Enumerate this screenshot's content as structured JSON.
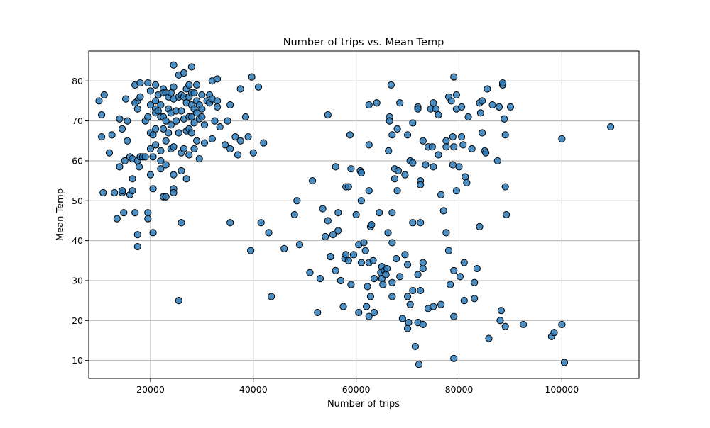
{
  "chart_data": {
    "type": "scatter",
    "title": "Number of trips vs. Mean Temp",
    "xlabel": "Number of trips",
    "ylabel": "Mean Temp",
    "xlim": [
      8000,
      115000
    ],
    "ylim": [
      5.5,
      87.5
    ],
    "xticks": [
      20000,
      40000,
      60000,
      80000,
      100000
    ],
    "yticks": [
      10,
      20,
      30,
      40,
      50,
      60,
      70,
      80
    ],
    "grid": true,
    "marker_color": "#2b7bba",
    "edge_color": "#000000",
    "points": [
      [
        10000,
        75
      ],
      [
        11000,
        76.5
      ],
      [
        10500,
        71.5
      ],
      [
        10500,
        66
      ],
      [
        12500,
        66.5
      ],
      [
        10800,
        52
      ],
      [
        12000,
        62
      ],
      [
        13000,
        52
      ],
      [
        13500,
        45.5
      ],
      [
        14000,
        58.5
      ],
      [
        14000,
        70.5
      ],
      [
        14500,
        68
      ],
      [
        14500,
        52
      ],
      [
        14800,
        47
      ],
      [
        14500,
        52.5
      ],
      [
        15000,
        60
      ],
      [
        15500,
        70
      ],
      [
        15500,
        65
      ],
      [
        15200,
        75.5
      ],
      [
        16000,
        51.5
      ],
      [
        16500,
        55.5
      ],
      [
        16000,
        61
      ],
      [
        16500,
        60.5
      ],
      [
        16500,
        52.5
      ],
      [
        17000,
        79
      ],
      [
        17500,
        75
      ],
      [
        17000,
        74.5
      ],
      [
        17500,
        73
      ],
      [
        17500,
        60
      ],
      [
        17800,
        58.5
      ],
      [
        17000,
        47
      ],
      [
        17500,
        41.5
      ],
      [
        17500,
        38.5
      ],
      [
        18000,
        79.5
      ],
      [
        18000,
        76
      ],
      [
        18000,
        61
      ],
      [
        18500,
        61
      ],
      [
        19000,
        70
      ],
      [
        19000,
        61
      ],
      [
        19500,
        47
      ],
      [
        19500,
        45.5
      ],
      [
        19500,
        79.5
      ],
      [
        19500,
        71
      ],
      [
        20000,
        77.5
      ],
      [
        20000,
        74
      ],
      [
        20000,
        67
      ],
      [
        20000,
        63
      ],
      [
        20000,
        56.5
      ],
      [
        20500,
        61
      ],
      [
        20500,
        53
      ],
      [
        20500,
        42
      ],
      [
        20500,
        66.5
      ],
      [
        21000,
        73
      ],
      [
        21000,
        79
      ],
      [
        21000,
        72
      ],
      [
        21000,
        75
      ],
      [
        21000,
        68
      ],
      [
        21000,
        64
      ],
      [
        21500,
        76.5
      ],
      [
        21500,
        72.5
      ],
      [
        22000,
        71
      ],
      [
        22000,
        74
      ],
      [
        22000,
        62.5
      ],
      [
        22000,
        60
      ],
      [
        22000,
        58
      ],
      [
        22500,
        78
      ],
      [
        22500,
        77
      ],
      [
        22500,
        71
      ],
      [
        22500,
        68
      ],
      [
        22500,
        51
      ],
      [
        23000,
        77
      ],
      [
        23000,
        70
      ],
      [
        23000,
        65
      ],
      [
        23000,
        59
      ],
      [
        23000,
        51
      ],
      [
        23500,
        76
      ],
      [
        23500,
        73
      ],
      [
        23500,
        67
      ],
      [
        24000,
        77
      ],
      [
        24000,
        72
      ],
      [
        24000,
        69
      ],
      [
        24000,
        63
      ],
      [
        24500,
        84
      ],
      [
        24500,
        78.5
      ],
      [
        24500,
        75.5
      ],
      [
        24500,
        63.5
      ],
      [
        24500,
        53
      ],
      [
        24500,
        52
      ],
      [
        24500,
        56.5
      ],
      [
        25000,
        72.5
      ],
      [
        25000,
        70
      ],
      [
        25500,
        81.5
      ],
      [
        25500,
        76
      ],
      [
        25500,
        67
      ],
      [
        25500,
        25
      ],
      [
        26000,
        76.5
      ],
      [
        26000,
        72.5
      ],
      [
        26000,
        62
      ],
      [
        26000,
        57.5
      ],
      [
        26000,
        44.5
      ],
      [
        26500,
        82
      ],
      [
        26500,
        76
      ],
      [
        26500,
        70.5
      ],
      [
        26500,
        63
      ],
      [
        27000,
        78
      ],
      [
        27000,
        74.5
      ],
      [
        27000,
        67.5
      ],
      [
        27000,
        55.5
      ],
      [
        27500,
        79
      ],
      [
        27500,
        76
      ],
      [
        27500,
        71
      ],
      [
        27500,
        68
      ],
      [
        27500,
        61.5
      ],
      [
        28000,
        83.5
      ],
      [
        28000,
        77
      ],
      [
        28000,
        74
      ],
      [
        28000,
        71
      ],
      [
        28000,
        67
      ],
      [
        28500,
        77
      ],
      [
        28500,
        73
      ],
      [
        28500,
        69.5
      ],
      [
        28500,
        63
      ],
      [
        29000,
        79
      ],
      [
        29000,
        75
      ],
      [
        29000,
        72
      ],
      [
        29000,
        65
      ],
      [
        29500,
        74
      ],
      [
        29500,
        70.5
      ],
      [
        29500,
        60.5
      ],
      [
        30000,
        76.5
      ],
      [
        30000,
        73
      ],
      [
        30000,
        71
      ],
      [
        30500,
        69
      ],
      [
        30500,
        64.5
      ],
      [
        31000,
        75
      ],
      [
        31500,
        76.5
      ],
      [
        31500,
        74.5
      ],
      [
        32000,
        80
      ],
      [
        32000,
        75.5
      ],
      [
        32000,
        65.5
      ],
      [
        32500,
        70
      ],
      [
        33000,
        80.5
      ],
      [
        33000,
        75
      ],
      [
        33000,
        73.5
      ],
      [
        33500,
        68.5
      ],
      [
        34500,
        64
      ],
      [
        35000,
        70
      ],
      [
        35500,
        74
      ],
      [
        35500,
        63
      ],
      [
        35500,
        44.5
      ],
      [
        36500,
        66
      ],
      [
        37000,
        61.5
      ],
      [
        37500,
        78
      ],
      [
        37500,
        65
      ],
      [
        38500,
        71
      ],
      [
        39000,
        66
      ],
      [
        39500,
        37.5
      ],
      [
        39700,
        81
      ],
      [
        40000,
        62
      ],
      [
        41000,
        78.5
      ],
      [
        41500,
        44.5
      ],
      [
        42000,
        64.5
      ],
      [
        43000,
        42
      ],
      [
        43500,
        26
      ],
      [
        46000,
        38
      ],
      [
        48000,
        46.5
      ],
      [
        48500,
        50
      ],
      [
        49000,
        39
      ],
      [
        51000,
        32
      ],
      [
        51500,
        55
      ],
      [
        52500,
        22
      ],
      [
        53000,
        30.5
      ],
      [
        53500,
        48
      ],
      [
        54000,
        41
      ],
      [
        54500,
        45
      ],
      [
        54500,
        71.5
      ],
      [
        55000,
        36
      ],
      [
        55500,
        41.5
      ],
      [
        56000,
        58.5
      ],
      [
        56000,
        32.5
      ],
      [
        56500,
        47
      ],
      [
        56500,
        42.5
      ],
      [
        57000,
        30
      ],
      [
        57500,
        23.5
      ],
      [
        57800,
        35.5
      ],
      [
        58000,
        53.5
      ],
      [
        58000,
        36.5
      ],
      [
        58500,
        53.5
      ],
      [
        58500,
        35
      ],
      [
        58800,
        66.5
      ],
      [
        59000,
        58
      ],
      [
        59000,
        29
      ],
      [
        59500,
        36.5
      ],
      [
        60000,
        46.5
      ],
      [
        60500,
        39
      ],
      [
        60500,
        22
      ],
      [
        60800,
        57.5
      ],
      [
        61000,
        57
      ],
      [
        61000,
        50
      ],
      [
        61000,
        34.5
      ],
      [
        61500,
        39.5
      ],
      [
        61800,
        37.5
      ],
      [
        62000,
        23.5
      ],
      [
        62200,
        28.5
      ],
      [
        62500,
        74
      ],
      [
        62500,
        64
      ],
      [
        62500,
        52.5
      ],
      [
        62500,
        34.5
      ],
      [
        62500,
        21
      ],
      [
        62800,
        43.5
      ],
      [
        62800,
        26
      ],
      [
        63000,
        44
      ],
      [
        63300,
        35
      ],
      [
        63500,
        30.5
      ],
      [
        63500,
        22
      ],
      [
        64000,
        74.5
      ],
      [
        64500,
        47
      ],
      [
        64800,
        32
      ],
      [
        65000,
        33.5
      ],
      [
        65000,
        30.5
      ],
      [
        65200,
        29
      ],
      [
        65500,
        32.5
      ],
      [
        65800,
        31.5
      ],
      [
        66000,
        33
      ],
      [
        66200,
        42
      ],
      [
        66300,
        62.5
      ],
      [
        66500,
        71
      ],
      [
        66500,
        70
      ],
      [
        66800,
        79
      ],
      [
        67000,
        66.5
      ],
      [
        67000,
        47
      ],
      [
        67000,
        39.5
      ],
      [
        67000,
        29.5
      ],
      [
        67000,
        26
      ],
      [
        67500,
        58
      ],
      [
        67500,
        55.5
      ],
      [
        67800,
        35.5
      ],
      [
        68000,
        68
      ],
      [
        68000,
        52.5
      ],
      [
        68200,
        57.5
      ],
      [
        68500,
        74.5
      ],
      [
        68500,
        31
      ],
      [
        69000,
        20.5
      ],
      [
        69500,
        56.5
      ],
      [
        69500,
        36.5
      ],
      [
        70000,
        66.5
      ],
      [
        70000,
        34
      ],
      [
        70000,
        26
      ],
      [
        70000,
        18
      ],
      [
        70200,
        19.5
      ],
      [
        70500,
        60
      ],
      [
        70500,
        24
      ],
      [
        71000,
        69.5
      ],
      [
        71000,
        59.5
      ],
      [
        71000,
        44.5
      ],
      [
        71000,
        27.5
      ],
      [
        71500,
        13.5
      ],
      [
        72000,
        73.5
      ],
      [
        72000,
        73
      ],
      [
        72000,
        31.5
      ],
      [
        72000,
        19.5
      ],
      [
        72200,
        9
      ],
      [
        72500,
        55
      ],
      [
        72500,
        54
      ],
      [
        72500,
        44.5
      ],
      [
        72500,
        27.5
      ],
      [
        73000,
        65
      ],
      [
        73000,
        33
      ],
      [
        73000,
        34.5
      ],
      [
        73000,
        19
      ],
      [
        73500,
        59
      ],
      [
        74000,
        63.5
      ],
      [
        74000,
        23
      ],
      [
        74500,
        73
      ],
      [
        74800,
        63.5
      ],
      [
        75000,
        74.5
      ],
      [
        75000,
        58.5
      ],
      [
        75000,
        23.5
      ],
      [
        75500,
        73
      ],
      [
        76000,
        71.5
      ],
      [
        76000,
        61.5
      ],
      [
        76500,
        51.5
      ],
      [
        76500,
        24
      ],
      [
        77000,
        47.5
      ],
      [
        77500,
        65
      ],
      [
        77500,
        42
      ],
      [
        77500,
        63.5
      ],
      [
        78000,
        76
      ],
      [
        78000,
        37.5
      ],
      [
        78300,
        29
      ],
      [
        78500,
        75
      ],
      [
        78800,
        66
      ],
      [
        78800,
        59
      ],
      [
        79000,
        81
      ],
      [
        79000,
        63.5
      ],
      [
        79000,
        32.5
      ],
      [
        79000,
        21
      ],
      [
        79000,
        10.5
      ],
      [
        79500,
        76.5
      ],
      [
        79500,
        73
      ],
      [
        79500,
        52.5
      ],
      [
        80000,
        58.5
      ],
      [
        80200,
        31
      ],
      [
        80500,
        73.5
      ],
      [
        80500,
        66
      ],
      [
        80800,
        64
      ],
      [
        81000,
        34.5
      ],
      [
        81000,
        25
      ],
      [
        81200,
        56
      ],
      [
        81500,
        54.5
      ],
      [
        81800,
        71
      ],
      [
        82500,
        63
      ],
      [
        83000,
        29.5
      ],
      [
        83000,
        25.5
      ],
      [
        83500,
        33
      ],
      [
        84000,
        43.5
      ],
      [
        84000,
        74.5
      ],
      [
        84200,
        72
      ],
      [
        84500,
        75
      ],
      [
        84500,
        67
      ],
      [
        85000,
        62.5
      ],
      [
        85200,
        62
      ],
      [
        85500,
        78
      ],
      [
        85800,
        15.5
      ],
      [
        86500,
        74
      ],
      [
        87500,
        60
      ],
      [
        87800,
        73.5
      ],
      [
        88000,
        20
      ],
      [
        88200,
        22.5
      ],
      [
        88500,
        79
      ],
      [
        88500,
        79.5
      ],
      [
        88800,
        70.5
      ],
      [
        89000,
        66.5
      ],
      [
        89000,
        53.5
      ],
      [
        89200,
        46.5
      ],
      [
        89000,
        18.5
      ],
      [
        90000,
        73.5
      ],
      [
        92500,
        19
      ],
      [
        98000,
        16
      ],
      [
        98500,
        17
      ],
      [
        100000,
        65.5
      ],
      [
        100000,
        19
      ],
      [
        100500,
        9.5
      ],
      [
        109500,
        68.5
      ]
    ]
  }
}
